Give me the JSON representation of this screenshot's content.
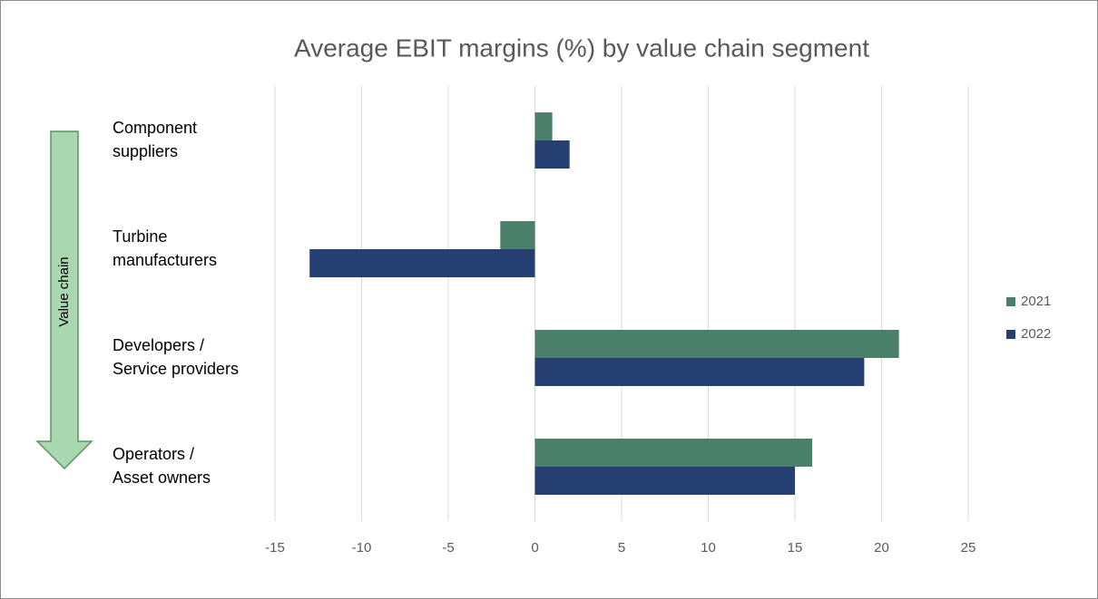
{
  "chart_data": {
    "type": "bar",
    "orientation": "horizontal",
    "title": "Average EBIT margins (%) by value chain segment",
    "annotation": "Value chain",
    "categories": [
      "Component\nsuppliers",
      "Turbine\nmanufacturers",
      "Developers /\nService providers",
      "Operators /\nAsset owners"
    ],
    "series": [
      {
        "name": "2021",
        "color": "#4a7f6a",
        "values": [
          1,
          -2,
          21,
          16
        ]
      },
      {
        "name": "2022",
        "color": "#253f72",
        "values": [
          2,
          -13,
          19,
          15
        ]
      }
    ],
    "xlim": [
      -15,
      25
    ],
    "xticks": [
      -15,
      -10,
      -5,
      0,
      5,
      10,
      15,
      20,
      25
    ],
    "grid": true,
    "legend": "right"
  }
}
